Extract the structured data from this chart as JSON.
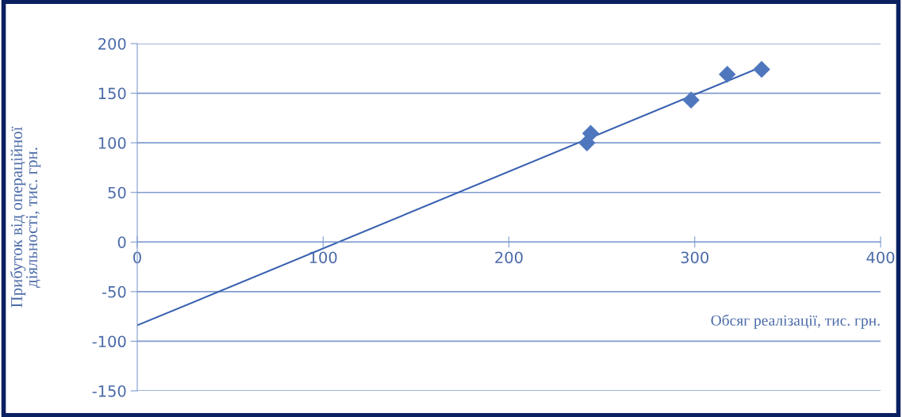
{
  "chart_data": {
    "type": "scatter",
    "xlabel": "Обсяг реалізації, тис. грн.",
    "ylabel": "Прибуток від операційної\nдіяльності, тис. грн.",
    "series": [
      {
        "color": "#4f77be",
        "x": [
          242,
          244,
          298,
          317.5,
          336
        ],
        "values": [
          100,
          109.5,
          143,
          169,
          174
        ],
        "marker": "diamond"
      },
      {
        "type": "line",
        "color": "#3a62b0",
        "x": [
          0,
          334
        ],
        "values": [
          -84,
          175
        ],
        "marker": "none"
      }
    ],
    "xlim": [
      0,
      400
    ],
    "xticks": [
      0,
      100,
      200,
      300,
      400
    ],
    "ylim": [
      -150,
      200
    ],
    "yticks": [
      -150,
      -100,
      -50,
      0,
      50,
      100,
      150,
      200
    ],
    "grid": "y",
    "legend": false
  }
}
